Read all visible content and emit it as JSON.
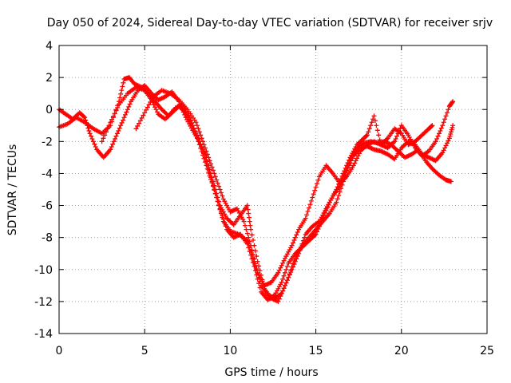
{
  "chart_data": {
    "type": "scatter",
    "title": "Day 050 of 2024, Sidereal Day-to-day VTEC variation (SDTVAR) for receiver srjv",
    "xlabel": "GPS time / hours",
    "ylabel": "SDTVAR / TECUs",
    "xlim": [
      0,
      25
    ],
    "ylim": [
      -14,
      4
    ],
    "xticks": [
      "0",
      "5",
      "10",
      "15",
      "20",
      "25"
    ],
    "yticks": [
      "4",
      "2",
      "0",
      "-2",
      "-4",
      "-6",
      "-8",
      "-10",
      "-12",
      "-14"
    ],
    "grid": true,
    "marker": "+",
    "color": "#ff0000",
    "series": [
      {
        "points": [
          [
            0.0,
            -1.1
          ],
          [
            0.5,
            -0.9
          ],
          [
            1.0,
            -0.5
          ],
          [
            1.5,
            -0.8
          ],
          [
            2.0,
            -1.2
          ],
          [
            2.5,
            -1.5
          ],
          [
            3.0,
            -1.0
          ],
          [
            3.5,
            0.5
          ],
          [
            3.8,
            1.9
          ],
          [
            4.1,
            2.0
          ],
          [
            4.4,
            1.6
          ],
          [
            4.8,
            1.4
          ],
          [
            5.2,
            1.0
          ],
          [
            5.6,
            0.5
          ],
          [
            6.0,
            0.0
          ],
          [
            6.4,
            -0.4
          ],
          [
            6.8,
            0.1
          ],
          [
            7.2,
            0.3
          ],
          [
            7.6,
            -0.5
          ],
          [
            8.0,
            -1.5
          ],
          [
            8.4,
            -2.5
          ],
          [
            8.8,
            -4.0
          ],
          [
            9.2,
            -5.5
          ],
          [
            9.6,
            -7.0
          ],
          [
            10.0,
            -7.6
          ],
          [
            10.5,
            -7.8
          ],
          [
            11.0,
            -8.2
          ],
          [
            11.4,
            -9.5
          ],
          [
            11.8,
            -11.0
          ],
          [
            12.2,
            -11.6
          ],
          [
            12.6,
            -11.8
          ],
          [
            13.0,
            -11.5
          ],
          [
            13.4,
            -10.5
          ],
          [
            13.8,
            -9.2
          ],
          [
            14.2,
            -8.5
          ],
          [
            14.6,
            -8.0
          ],
          [
            15.0,
            -7.5
          ],
          [
            15.4,
            -7.0
          ],
          [
            15.8,
            -6.5
          ],
          [
            16.2,
            -5.8
          ],
          [
            16.6,
            -4.5
          ],
          [
            17.0,
            -3.2
          ],
          [
            17.4,
            -2.4
          ],
          [
            17.8,
            -2.1
          ],
          [
            18.2,
            -2.0
          ],
          [
            18.6,
            -2.1
          ],
          [
            19.0,
            -2.0
          ],
          [
            19.4,
            -2.2
          ],
          [
            19.8,
            -2.6
          ],
          [
            20.2,
            -3.0
          ],
          [
            20.6,
            -2.8
          ],
          [
            21.0,
            -2.5
          ],
          [
            21.4,
            -3.2
          ],
          [
            21.8,
            -3.7
          ],
          [
            22.2,
            -4.1
          ],
          [
            22.6,
            -4.4
          ],
          [
            22.9,
            -4.5
          ]
        ]
      },
      {
        "points": [
          [
            0.0,
            0.0
          ],
          [
            0.4,
            -0.3
          ],
          [
            0.8,
            -0.6
          ],
          [
            1.2,
            -0.2
          ],
          [
            1.5,
            -0.5
          ],
          [
            1.8,
            -1.5
          ],
          [
            2.2,
            -2.5
          ],
          [
            2.6,
            -3.0
          ],
          [
            3.0,
            -2.5
          ],
          [
            3.4,
            -1.5
          ],
          [
            3.8,
            -0.5
          ],
          [
            4.2,
            0.5
          ],
          [
            4.6,
            1.2
          ],
          [
            5.0,
            1.5
          ],
          [
            5.4,
            1.0
          ],
          [
            5.8,
            0.6
          ],
          [
            6.2,
            0.8
          ],
          [
            6.6,
            1.1
          ],
          [
            7.0,
            0.5
          ],
          [
            7.4,
            -0.5
          ],
          [
            7.8,
            -1.3
          ],
          [
            8.2,
            -2.0
          ],
          [
            8.6,
            -3.0
          ],
          [
            9.0,
            -4.5
          ],
          [
            9.4,
            -6.0
          ],
          [
            9.8,
            -6.8
          ],
          [
            10.2,
            -7.2
          ],
          [
            10.6,
            -6.6
          ],
          [
            11.0,
            -6.0
          ],
          [
            11.2,
            -7.5
          ],
          [
            11.6,
            -9.5
          ],
          [
            12.0,
            -11.2
          ],
          [
            12.4,
            -11.8
          ],
          [
            12.8,
            -12.0
          ],
          [
            13.2,
            -11.0
          ],
          [
            13.6,
            -10.0
          ],
          [
            14.0,
            -9.0
          ],
          [
            14.4,
            -7.8
          ],
          [
            14.8,
            -7.3
          ],
          [
            15.2,
            -7.0
          ],
          [
            15.6,
            -6.2
          ],
          [
            16.0,
            -5.4
          ],
          [
            16.4,
            -4.8
          ],
          [
            16.8,
            -3.8
          ],
          [
            17.2,
            -2.9
          ],
          [
            17.6,
            -2.4
          ],
          [
            18.0,
            -2.3
          ],
          [
            18.4,
            -2.5
          ],
          [
            18.8,
            -2.6
          ],
          [
            19.2,
            -2.8
          ],
          [
            19.6,
            -3.1
          ],
          [
            20.0,
            -2.4
          ],
          [
            20.4,
            -2.0
          ],
          [
            20.8,
            -2.2
          ],
          [
            21.2,
            -2.8
          ],
          [
            21.6,
            -3.0
          ],
          [
            22.0,
            -3.2
          ],
          [
            22.4,
            -2.7
          ],
          [
            22.8,
            -1.8
          ],
          [
            23.0,
            -1.0
          ]
        ]
      },
      {
        "points": [
          [
            2.5,
            -2.0
          ],
          [
            3.0,
            -0.8
          ],
          [
            3.5,
            0.3
          ],
          [
            4.0,
            1.0
          ],
          [
            4.5,
            1.4
          ],
          [
            5.0,
            1.2
          ],
          [
            5.4,
            0.6
          ],
          [
            5.8,
            -0.3
          ],
          [
            6.2,
            -0.6
          ],
          [
            6.6,
            -0.2
          ],
          [
            7.0,
            0.2
          ],
          [
            7.4,
            -0.2
          ],
          [
            7.8,
            -1.0
          ],
          [
            8.2,
            -2.2
          ],
          [
            8.6,
            -3.5
          ],
          [
            9.0,
            -4.8
          ],
          [
            9.4,
            -6.2
          ],
          [
            9.8,
            -7.5
          ],
          [
            10.2,
            -8.0
          ],
          [
            10.6,
            -7.8
          ],
          [
            11.0,
            -8.4
          ],
          [
            11.4,
            -9.8
          ],
          [
            11.8,
            -11.4
          ],
          [
            12.2,
            -11.9
          ],
          [
            12.6,
            -11.6
          ],
          [
            13.0,
            -10.8
          ],
          [
            13.4,
            -9.6
          ],
          [
            13.8,
            -9.0
          ],
          [
            14.2,
            -8.6
          ],
          [
            14.6,
            -8.2
          ],
          [
            15.0,
            -7.8
          ],
          [
            15.4,
            -6.8
          ],
          [
            15.8,
            -5.8
          ],
          [
            16.2,
            -5.0
          ],
          [
            16.6,
            -4.0
          ],
          [
            17.0,
            -3.0
          ],
          [
            17.4,
            -2.2
          ],
          [
            17.8,
            -1.8
          ],
          [
            18.0,
            -1.6
          ],
          [
            18.4,
            -0.4
          ],
          [
            18.8,
            -2.2
          ],
          [
            19.2,
            -2.4
          ],
          [
            19.6,
            -2.0
          ],
          [
            20.0,
            -1.0
          ],
          [
            20.4,
            -1.6
          ],
          [
            20.8,
            -2.4
          ],
          [
            21.2,
            -2.9
          ],
          [
            21.6,
            -2.6
          ],
          [
            22.0,
            -2.0
          ],
          [
            22.4,
            -1.0
          ],
          [
            22.8,
            0.2
          ],
          [
            23.0,
            0.5
          ]
        ]
      },
      {
        "points": [
          [
            4.5,
            -1.2
          ],
          [
            5.0,
            -0.2
          ],
          [
            5.5,
            0.8
          ],
          [
            6.0,
            1.2
          ],
          [
            6.5,
            1.0
          ],
          [
            7.0,
            0.6
          ],
          [
            7.5,
            0.0
          ],
          [
            8.0,
            -0.8
          ],
          [
            8.4,
            -2.0
          ],
          [
            8.8,
            -3.2
          ],
          [
            9.2,
            -4.4
          ],
          [
            9.6,
            -5.6
          ],
          [
            10.0,
            -6.4
          ],
          [
            10.4,
            -6.2
          ],
          [
            10.8,
            -7.0
          ],
          [
            11.2,
            -8.5
          ],
          [
            11.6,
            -10.2
          ],
          [
            12.0,
            -11.0
          ],
          [
            12.4,
            -10.8
          ],
          [
            12.8,
            -10.2
          ],
          [
            13.2,
            -9.3
          ],
          [
            13.6,
            -8.5
          ],
          [
            14.0,
            -7.5
          ],
          [
            14.4,
            -6.8
          ],
          [
            14.8,
            -5.5
          ],
          [
            15.2,
            -4.2
          ],
          [
            15.6,
            -3.5
          ],
          [
            16.0,
            -4.0
          ],
          [
            16.4,
            -4.6
          ],
          [
            16.8,
            -4.2
          ],
          [
            17.2,
            -3.5
          ],
          [
            17.6,
            -2.6
          ],
          [
            18.0,
            -2.2
          ],
          [
            18.4,
            -2.0
          ],
          [
            18.8,
            -2.2
          ],
          [
            19.2,
            -1.8
          ],
          [
            19.6,
            -1.2
          ],
          [
            20.0,
            -1.5
          ],
          [
            20.4,
            -2.2
          ],
          [
            20.8,
            -2.0
          ],
          [
            21.2,
            -1.6
          ],
          [
            21.6,
            -1.2
          ],
          [
            21.8,
            -1.0
          ]
        ]
      }
    ]
  }
}
